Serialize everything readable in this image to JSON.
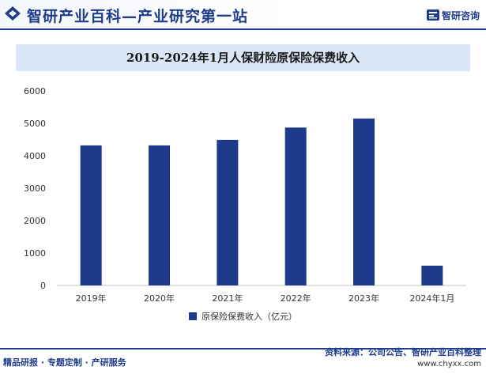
{
  "header": {
    "site_title": "智研产业百科—产业研究第一站",
    "brand_name": "智研咨询"
  },
  "colors": {
    "brand": "#1f3d8c",
    "bar": "#1e3a8a",
    "title_band": "#dbe6f6"
  },
  "chart_data": {
    "type": "bar",
    "title": "2019-2024年1月人保财险原保险保费收入",
    "categories": [
      "2019年",
      "2020年",
      "2021年",
      "2022年",
      "2023年",
      "2024年1月"
    ],
    "series": [
      {
        "name": "原保险保费收入（亿元）",
        "values": [
          4320,
          4320,
          4490,
          4870,
          5150,
          610
        ]
      }
    ],
    "ylim": [
      0,
      6000
    ],
    "yticks": [
      0,
      1000,
      2000,
      3000,
      4000,
      5000,
      6000
    ],
    "grid": false,
    "legend_position": "bottom"
  },
  "footer": {
    "left_text": "精品研报 · 专题定制 · 产研服务",
    "source_text": "资料来源：公司公告、智研产业百科整理",
    "url_text": "www.chyxx.com"
  }
}
